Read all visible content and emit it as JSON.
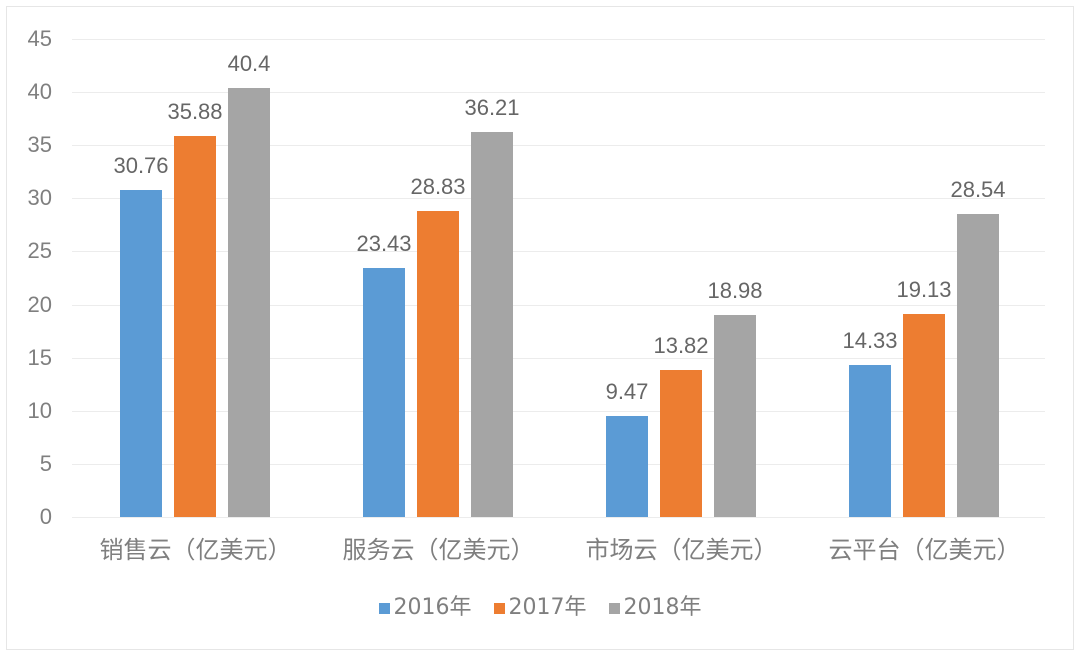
{
  "chart_data": {
    "type": "bar",
    "title": "",
    "xlabel": "",
    "ylabel": "",
    "categories": [
      "销售云（亿美元）",
      "服务云（亿美元）",
      "市场云（亿美元）",
      "云平台（亿美元）"
    ],
    "series": [
      {
        "name": "2016年",
        "color": "#5b9bd5",
        "values": [
          30.76,
          23.43,
          9.47,
          14.33
        ],
        "labels": [
          "30.76",
          "23.43",
          "9.47",
          "14.33"
        ]
      },
      {
        "name": "2017年",
        "color": "#ed7d31",
        "values": [
          35.88,
          28.83,
          13.82,
          19.13
        ],
        "labels": [
          "35.88",
          "28.83",
          "13.82",
          "19.13"
        ]
      },
      {
        "name": "2018年",
        "color": "#a5a5a5",
        "values": [
          40.4,
          36.21,
          18.98,
          28.54
        ],
        "labels": [
          "40.4",
          "36.21",
          "18.98",
          "28.54"
        ]
      }
    ],
    "ylim": [
      0,
      45
    ],
    "yticks": [
      "0",
      "5",
      "10",
      "15",
      "20",
      "25",
      "30",
      "35",
      "40",
      "45"
    ],
    "grid": true,
    "legend_position": "bottom"
  }
}
